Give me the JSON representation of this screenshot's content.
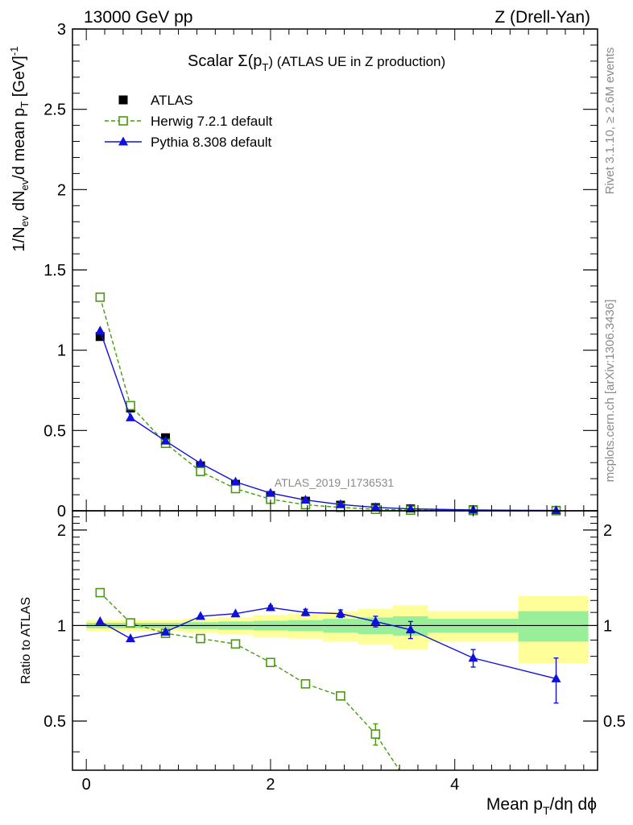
{
  "header": {
    "left": "13000 GeV pp",
    "right": "Z (Drell-Yan)"
  },
  "plot_title": {
    "prefix": "Scalar Σ(p",
    "sub": "T",
    "suffix": ") (ATLAS UE in Z production)"
  },
  "side_texts": {
    "rivet": "Rivet 3.1.10, ≥ 2.6M events",
    "mcplots": "mcplots.cern.ch [arXiv:1306.3436]"
  },
  "analysis_label": "ATLAS_2019_I1736531",
  "x_axis_label": "Mean p_T/dη dϕ",
  "y_axis_label": "1/N_ev dN_ev/d mean p_T [GeV]^-1",
  "ratio_ylabel": "Ratio to ATLAS",
  "colors": {
    "data": "#000000",
    "herwig": "#4a9a10",
    "pythia": "#1010dd",
    "band_inner": "#99ee99",
    "band_outer": "#ffff99"
  },
  "chart_data": [
    {
      "type": "line",
      "panel": "main",
      "xlim": [
        -0.15,
        5.55
      ],
      "ylim": [
        0,
        3
      ],
      "yticks": [
        "0",
        "0.5",
        "1",
        "1.5",
        "2",
        "2.5",
        "3"
      ],
      "legend_placement": "top-left",
      "series": [
        {
          "name": "ATLAS",
          "style": "data",
          "x": [
            0.15,
            0.48,
            0.86,
            1.24,
            1.62,
            2.0,
            2.38,
            2.76,
            3.14,
            3.52,
            4.2,
            5.1
          ],
          "y": [
            1.085,
            0.64,
            0.455,
            0.28,
            0.165,
            0.095,
            0.06,
            0.035,
            0.02,
            0.012,
            0.006,
            0.003
          ]
        },
        {
          "name": "Herwig 7.2.1 default",
          "style": "herwig",
          "x": [
            0.15,
            0.48,
            0.86,
            1.24,
            1.62,
            2.0,
            2.38,
            2.76,
            3.14,
            3.52,
            4.2,
            5.1
          ],
          "y": [
            1.33,
            0.655,
            0.42,
            0.245,
            0.138,
            0.072,
            0.038,
            0.021,
            0.009,
            0.004,
            0.0015,
            0.0005
          ]
        },
        {
          "name": "Pythia 8.308 default",
          "style": "pythia",
          "x": [
            0.15,
            0.48,
            0.86,
            1.24,
            1.62,
            2.0,
            2.38,
            2.76,
            3.14,
            3.52,
            4.2,
            5.1
          ],
          "y": [
            1.12,
            0.58,
            0.435,
            0.295,
            0.18,
            0.11,
            0.067,
            0.039,
            0.021,
            0.012,
            0.005,
            0.002
          ]
        }
      ]
    },
    {
      "type": "line",
      "panel": "ratio",
      "ylabel": "Ratio to ATLAS",
      "xlim": [
        -0.15,
        5.55
      ],
      "ylim": [
        0.35,
        2.3
      ],
      "xticks": [
        "0",
        "2",
        "4"
      ],
      "yticks": [
        "0.5",
        "1",
        "2"
      ],
      "bands": {
        "edges": [
          0.0,
          0.3,
          0.67,
          1.05,
          1.43,
          1.81,
          2.19,
          2.57,
          2.95,
          3.33,
          3.71,
          4.69,
          5.45
        ],
        "inner": [
          0.02,
          0.02,
          0.02,
          0.025,
          0.03,
          0.035,
          0.04,
          0.05,
          0.06,
          0.07,
          0.05,
          0.11
        ],
        "outer": [
          0.04,
          0.04,
          0.04,
          0.05,
          0.06,
          0.08,
          0.09,
          0.11,
          0.13,
          0.16,
          0.11,
          0.24
        ]
      },
      "series": [
        {
          "name": "Herwig 7.2.1 default",
          "style": "herwig",
          "x": [
            0.15,
            0.48,
            0.86,
            1.24,
            1.62,
            2.0,
            2.38,
            2.76,
            3.14,
            3.4
          ],
          "y": [
            1.27,
            1.02,
            0.945,
            0.91,
            0.875,
            0.765,
            0.655,
            0.6,
            0.455,
            0.35
          ],
          "yerr": [
            0.01,
            0.01,
            0.01,
            0.01,
            0.01,
            0.01,
            0.01,
            0.015,
            0.035,
            0
          ]
        },
        {
          "name": "Pythia 8.308 default",
          "style": "pythia",
          "x": [
            0.15,
            0.48,
            0.86,
            1.24,
            1.62,
            2.0,
            2.38,
            2.76,
            3.14,
            3.52,
            4.2,
            5.1
          ],
          "y": [
            1.03,
            0.91,
            0.955,
            1.07,
            1.09,
            1.14,
            1.1,
            1.09,
            1.03,
            0.97,
            0.79,
            0.68
          ],
          "yerr": [
            0.01,
            0.01,
            0.01,
            0.01,
            0.01,
            0.015,
            0.025,
            0.03,
            0.04,
            0.06,
            0.05,
            0.11
          ]
        }
      ]
    }
  ]
}
